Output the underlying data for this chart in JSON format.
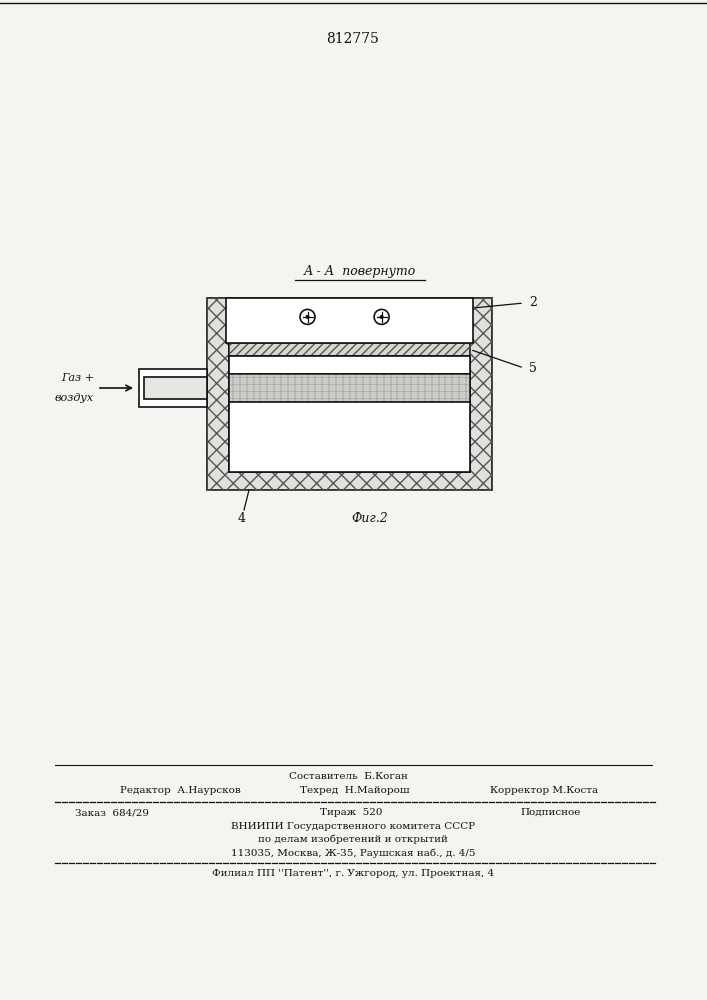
{
  "title_patent": "812775",
  "section_label": "А - А  повернуто",
  "fig_label": "Фиг.2",
  "label_2": "2",
  "label_4": "4",
  "label_5": "5",
  "gas_line1": "Газ +",
  "gas_line2": "воздух",
  "footer_comp": "Составитель  Б.Коган",
  "footer_edit": "Редактор  А.Наурсков",
  "footer_tech": "Техред  Н.Майорош",
  "footer_corr": "Корректор М.Коста",
  "footer_order": "Заказ  684/29",
  "footer_tirazh": "Тираж  520",
  "footer_podp": "Подписное",
  "footer_vniip1": "ВНИИПИ Государственного комитета СССР",
  "footer_vniip2": "по делам изобретений и открытий",
  "footer_vniip3": "113035, Москва, Ж-35, Раушская наб., д. 4/5",
  "footer_filial": "Филиал ПП ''Патент'', г. Ужгород, ул. Проектная, 4",
  "bg_color": "#f5f4f0",
  "line_color": "#111111"
}
